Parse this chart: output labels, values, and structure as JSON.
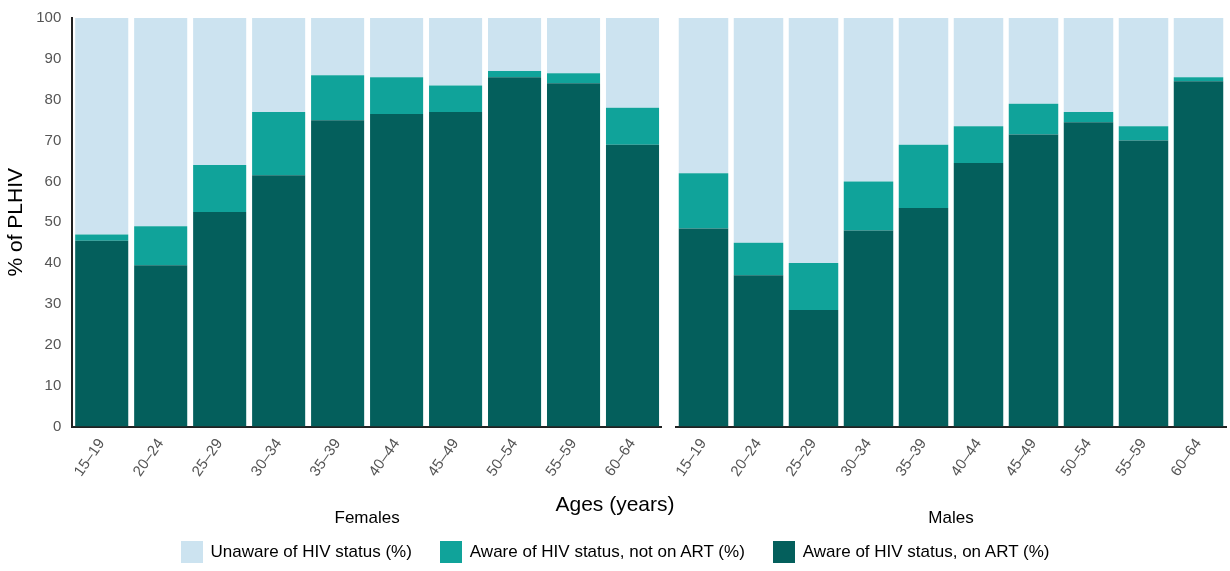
{
  "chart_data": [
    {
      "type": "bar",
      "title": "Females",
      "xlabel": "Ages (years)",
      "ylabel": "% of PLHIV",
      "stacked": true,
      "legend": "bottom",
      "grid": false,
      "categories": [
        "15–19",
        "20–24",
        "25–29",
        "30–34",
        "35–39",
        "40–44",
        "45–49",
        "50–54",
        "55–59",
        "60–64"
      ],
      "ylim": [
        0,
        100
      ],
      "yticks": [
        0,
        10,
        20,
        30,
        40,
        50,
        60,
        70,
        80,
        90,
        100
      ],
      "series": [
        {
          "name": "Aware of HIV status, on ART (%)",
          "color": "#045f5c",
          "values": [
            45.5,
            39.5,
            52.5,
            61.5,
            75,
            76.5,
            77,
            85.5,
            84,
            69
          ]
        },
        {
          "name": "Aware of HIV status, not on ART (%)",
          "color": "#10a39a",
          "values": [
            1.5,
            9.5,
            11.5,
            15.5,
            11,
            9,
            6.5,
            1.5,
            2.5,
            9
          ]
        },
        {
          "name": "Unaware of HIV status (%)",
          "color": "#cce3f0",
          "values": [
            53,
            51,
            36,
            23,
            14,
            14.5,
            16.5,
            13,
            13.5,
            22
          ]
        }
      ]
    },
    {
      "type": "bar",
      "title": "Males",
      "stacked": true,
      "legend": false,
      "grid": false,
      "tick_labels": "x",
      "categories": [
        "15–19",
        "20–24",
        "25–29",
        "30–34",
        "35–39",
        "40–44",
        "45–49",
        "50–54",
        "55–59",
        "60–64"
      ],
      "ylim": [
        0,
        100
      ],
      "yticks": [
        0,
        10,
        20,
        30,
        40,
        50,
        60,
        70,
        80,
        90,
        100
      ],
      "series": [
        {
          "color": "#045f5c",
          "values": [
            48.5,
            37,
            28.5,
            48,
            53.5,
            64.5,
            71.5,
            74.5,
            70,
            84.5
          ]
        },
        {
          "color": "#10a39a",
          "values": [
            13.5,
            8,
            11.5,
            12,
            15.5,
            9,
            7.5,
            2.5,
            3.5,
            1
          ]
        },
        {
          "color": "#cce3f0",
          "values": [
            38,
            55,
            60,
            40,
            31,
            26.5,
            21,
            23,
            26.5,
            14.5
          ]
        }
      ]
    }
  ]
}
